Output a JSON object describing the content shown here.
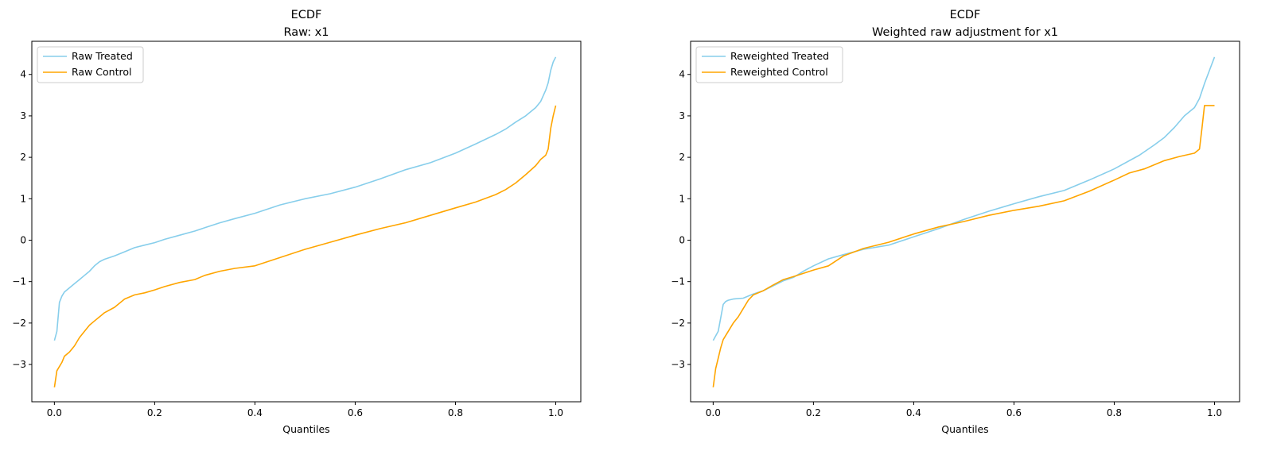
{
  "chart_data": [
    {
      "type": "line",
      "title": "ECDF",
      "subtitle": "Raw: x1",
      "xlabel": "Quantiles",
      "ylabel": "",
      "xlim": [
        -0.045,
        1.05
      ],
      "ylim": [
        -3.9,
        4.8
      ],
      "xticks": [
        0.0,
        0.2,
        0.4,
        0.6,
        0.8,
        1.0
      ],
      "xtick_labels": [
        "0.0",
        "0.2",
        "0.4",
        "0.6",
        "0.8",
        "1.0"
      ],
      "yticks": [
        -3,
        -2,
        -1,
        0,
        1,
        2,
        3,
        4
      ],
      "ytick_labels": [
        "−3",
        "−2",
        "−1",
        "0",
        "1",
        "2",
        "3",
        "4"
      ],
      "grid": false,
      "legend": "upper left",
      "series": [
        {
          "name": "Raw Treated",
          "color": "#87ceeb",
          "x": [
            0.0,
            0.005,
            0.01,
            0.015,
            0.02,
            0.03,
            0.04,
            0.05,
            0.06,
            0.07,
            0.08,
            0.09,
            0.1,
            0.12,
            0.14,
            0.16,
            0.18,
            0.2,
            0.22,
            0.25,
            0.28,
            0.3,
            0.33,
            0.36,
            0.4,
            0.45,
            0.5,
            0.55,
            0.6,
            0.65,
            0.7,
            0.75,
            0.8,
            0.84,
            0.88,
            0.9,
            0.92,
            0.94,
            0.96,
            0.97,
            0.98,
            0.985,
            0.99,
            0.995,
            1.0
          ],
          "y": [
            -2.42,
            -2.2,
            -1.5,
            -1.35,
            -1.25,
            -1.15,
            -1.05,
            -0.95,
            -0.85,
            -0.75,
            -0.62,
            -0.52,
            -0.46,
            -0.38,
            -0.28,
            -0.18,
            -0.12,
            -0.06,
            0.02,
            0.12,
            0.22,
            0.3,
            0.42,
            0.52,
            0.65,
            0.85,
            1.0,
            1.12,
            1.28,
            1.48,
            1.7,
            1.87,
            2.1,
            2.32,
            2.55,
            2.68,
            2.85,
            3.0,
            3.2,
            3.35,
            3.62,
            3.8,
            4.1,
            4.3,
            4.42
          ]
        },
        {
          "name": "Raw Control",
          "color": "#ffa500",
          "x": [
            0.0,
            0.005,
            0.01,
            0.015,
            0.02,
            0.03,
            0.04,
            0.05,
            0.06,
            0.07,
            0.08,
            0.09,
            0.1,
            0.12,
            0.14,
            0.16,
            0.18,
            0.2,
            0.22,
            0.25,
            0.28,
            0.3,
            0.33,
            0.36,
            0.4,
            0.45,
            0.5,
            0.55,
            0.6,
            0.65,
            0.7,
            0.75,
            0.8,
            0.84,
            0.88,
            0.9,
            0.92,
            0.94,
            0.96,
            0.97,
            0.98,
            0.985,
            0.99,
            0.995,
            1.0
          ],
          "y": [
            -3.55,
            -3.15,
            -3.05,
            -2.95,
            -2.8,
            -2.7,
            -2.55,
            -2.35,
            -2.2,
            -2.05,
            -1.95,
            -1.85,
            -1.75,
            -1.62,
            -1.42,
            -1.32,
            -1.27,
            -1.2,
            -1.12,
            -1.02,
            -0.95,
            -0.85,
            -0.75,
            -0.68,
            -0.62,
            -0.42,
            -0.22,
            -0.05,
            0.12,
            0.28,
            0.42,
            0.6,
            0.78,
            0.92,
            1.1,
            1.22,
            1.38,
            1.58,
            1.8,
            1.95,
            2.05,
            2.2,
            2.7,
            3.0,
            3.25
          ]
        }
      ]
    },
    {
      "type": "line",
      "title": "ECDF",
      "subtitle": "Weighted raw adjustment for x1",
      "xlabel": "Quantiles",
      "ylabel": "",
      "xlim": [
        -0.045,
        1.05
      ],
      "ylim": [
        -3.9,
        4.8
      ],
      "xticks": [
        0.0,
        0.2,
        0.4,
        0.6,
        0.8,
        1.0
      ],
      "xtick_labels": [
        "0.0",
        "0.2",
        "0.4",
        "0.6",
        "0.8",
        "1.0"
      ],
      "yticks": [
        -3,
        -2,
        -1,
        0,
        1,
        2,
        3,
        4
      ],
      "ytick_labels": [
        "−3",
        "−2",
        "−1",
        "0",
        "1",
        "2",
        "3",
        "4"
      ],
      "grid": false,
      "legend": "upper left",
      "series": [
        {
          "name": "Reweighted Treated",
          "color": "#87ceeb",
          "x": [
            0.0,
            0.01,
            0.02,
            0.025,
            0.03,
            0.04,
            0.06,
            0.08,
            0.1,
            0.12,
            0.14,
            0.16,
            0.18,
            0.2,
            0.23,
            0.26,
            0.3,
            0.35,
            0.4,
            0.45,
            0.5,
            0.55,
            0.6,
            0.65,
            0.7,
            0.75,
            0.8,
            0.85,
            0.88,
            0.9,
            0.92,
            0.94,
            0.96,
            0.97,
            0.98,
            0.99,
            1.0
          ],
          "y": [
            -2.42,
            -2.2,
            -1.55,
            -1.48,
            -1.45,
            -1.42,
            -1.4,
            -1.3,
            -1.22,
            -1.1,
            -0.98,
            -0.9,
            -0.75,
            -0.62,
            -0.45,
            -0.35,
            -0.22,
            -0.12,
            0.08,
            0.28,
            0.5,
            0.7,
            0.88,
            1.05,
            1.2,
            1.45,
            1.72,
            2.05,
            2.3,
            2.48,
            2.72,
            3.0,
            3.2,
            3.42,
            3.78,
            4.1,
            4.42
          ]
        },
        {
          "name": "Reweighted Control",
          "color": "#ffa500",
          "x": [
            0.0,
            0.005,
            0.01,
            0.015,
            0.02,
            0.03,
            0.04,
            0.05,
            0.06,
            0.07,
            0.08,
            0.1,
            0.12,
            0.14,
            0.16,
            0.18,
            0.2,
            0.23,
            0.26,
            0.3,
            0.35,
            0.4,
            0.45,
            0.5,
            0.55,
            0.6,
            0.65,
            0.7,
            0.75,
            0.8,
            0.83,
            0.86,
            0.9,
            0.93,
            0.96,
            0.97,
            0.975,
            0.98,
            0.99,
            1.0
          ],
          "y": [
            -3.55,
            -3.1,
            -2.85,
            -2.6,
            -2.4,
            -2.2,
            -2.0,
            -1.85,
            -1.65,
            -1.45,
            -1.32,
            -1.22,
            -1.08,
            -0.95,
            -0.88,
            -0.8,
            -0.72,
            -0.62,
            -0.38,
            -0.2,
            -0.05,
            0.15,
            0.32,
            0.45,
            0.6,
            0.72,
            0.82,
            0.95,
            1.18,
            1.45,
            1.62,
            1.72,
            1.92,
            2.02,
            2.1,
            2.2,
            2.7,
            3.25,
            3.25,
            3.25
          ]
        }
      ]
    }
  ]
}
